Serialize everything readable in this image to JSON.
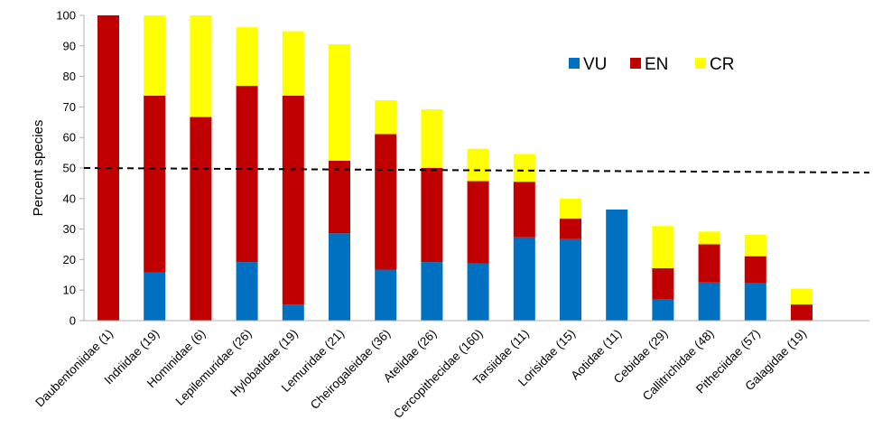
{
  "chart_data": {
    "type": "bar",
    "stacked": true,
    "title": "",
    "xlabel": "",
    "ylabel": "Percent species",
    "ylim": [
      0,
      100
    ],
    "yticks": [
      0,
      10,
      20,
      30,
      40,
      50,
      60,
      70,
      80,
      90,
      100
    ],
    "categories": [
      "Daubentoniidae (1)",
      "Indriidae (19)",
      "Hominidae (6)",
      "Lepilemuridae (26)",
      "Hylobatidae (19)",
      "Lemuridae (21)",
      "Cheirogaleidae (36)",
      "Atelidae (26)",
      "Cercopithecidae (160)",
      "Tarsiidae (11)",
      "Lorisidae (15)",
      "Aotidae (11)",
      "Cebidae (29)",
      "Callitrichidae (48)",
      "Pitheciidae (57)",
      "Galagidae (19)"
    ],
    "series": [
      {
        "name": "VU",
        "color": "#0070C0",
        "values": [
          0,
          15.8,
          0,
          19.2,
          5.3,
          28.6,
          16.7,
          19.2,
          18.8,
          27.3,
          26.7,
          36.4,
          6.9,
          12.5,
          12.3,
          0
        ]
      },
      {
        "name": "EN",
        "color": "#C00000",
        "values": [
          100,
          57.9,
          66.7,
          57.7,
          68.4,
          23.8,
          44.4,
          30.8,
          26.9,
          18.2,
          6.7,
          0,
          10.3,
          12.5,
          8.8,
          5.3
        ]
      },
      {
        "name": "CR",
        "color": "#FFFF00",
        "values": [
          0,
          26.3,
          33.3,
          19.2,
          21.1,
          38.1,
          11.1,
          19.2,
          10.6,
          9.1,
          6.6,
          0,
          13.8,
          4.2,
          7.0,
          5.2
        ]
      }
    ],
    "reference_line": {
      "y_start": 50,
      "y_end": 48.5,
      "style": "dashed"
    },
    "legend": {
      "position": "top-right",
      "entries": [
        "VU",
        "EN",
        "CR"
      ]
    },
    "grid": false
  }
}
